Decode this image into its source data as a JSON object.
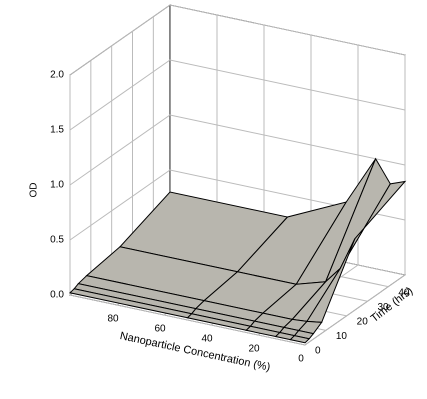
{
  "chart_data": {
    "type": "surface",
    "x_label": "Nanoparticle Concentration (%)",
    "y_label": "Time (hrs)",
    "z_label": "OD",
    "x": [
      0,
      6.25,
      12.5,
      25,
      50,
      100
    ],
    "y": [
      0,
      2,
      4,
      8,
      24,
      48
    ],
    "z": [
      [
        0.02,
        0.02,
        0.02,
        0.02,
        0.02,
        0.02
      ],
      [
        0.03,
        0.03,
        0.03,
        0.03,
        0.03,
        0.03
      ],
      [
        0.05,
        0.05,
        0.05,
        0.05,
        0.05,
        0.05
      ],
      [
        0.1,
        0.08,
        0.07,
        0.07,
        0.07,
        0.07
      ],
      [
        0.65,
        0.35,
        0.2,
        0.12,
        0.12,
        0.12
      ],
      [
        0.85,
        0.8,
        1.0,
        0.55,
        0.3,
        0.3
      ]
    ],
    "xlim": [
      0,
      100
    ],
    "ylim": [
      0,
      48
    ],
    "zlim": [
      0,
      2
    ],
    "xticks": [
      0,
      20,
      40,
      60,
      80
    ],
    "yticks": [
      0,
      10,
      20,
      30,
      40
    ],
    "zticks": [
      {
        "value": 0,
        "label": "0.0"
      },
      {
        "value": 0.5,
        "label": "0.5"
      },
      {
        "value": 1,
        "label": "1.0"
      },
      {
        "value": 1.5,
        "label": "1.5"
      },
      {
        "value": 2,
        "label": "2.0"
      }
    ],
    "color": "#b8b6ae",
    "grid": true
  }
}
